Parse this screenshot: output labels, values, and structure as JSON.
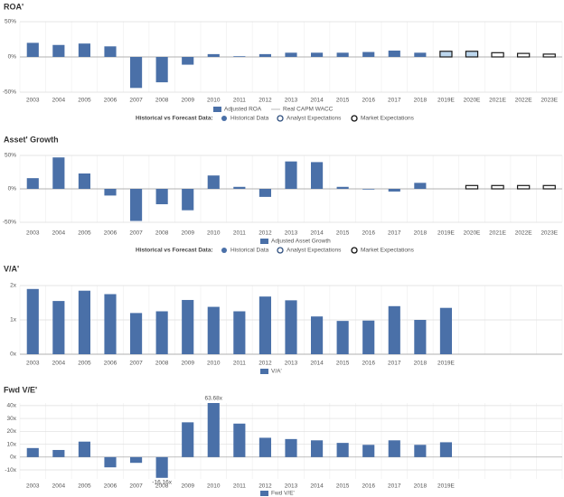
{
  "chart_data": [
    {
      "type": "bar",
      "title": "ROA'",
      "categories": [
        "2003",
        "2004",
        "2005",
        "2006",
        "2007",
        "2008",
        "2009",
        "2010",
        "2011",
        "2012",
        "2013",
        "2014",
        "2015",
        "2016",
        "2017",
        "2018",
        "2019E",
        "2020E",
        "2021E",
        "2022E",
        "2023E"
      ],
      "series_label": "Adjusted ROA",
      "series_label_color": "#4a70a8",
      "line_legend": {
        "label": "Real CAPM WACC",
        "color": "#bbbbbb"
      },
      "forecast_legend_title": "Historical vs Forecast Data:",
      "series": [
        {
          "name": "Historical Data",
          "color": "#4a70a8",
          "stroke": "none",
          "values": [
            20,
            17,
            19,
            15,
            -44,
            -36,
            -11,
            4,
            1,
            4,
            6,
            6,
            6,
            7,
            9,
            6,
            null,
            null,
            null,
            null,
            null
          ]
        },
        {
          "name": "Analyst Expectations",
          "color": "#bdd7ee",
          "stroke": "#1a1a1a",
          "values": [
            null,
            null,
            null,
            null,
            null,
            null,
            null,
            null,
            null,
            null,
            null,
            null,
            null,
            null,
            null,
            null,
            8,
            8,
            null,
            null,
            null
          ]
        },
        {
          "name": "Market Expectations",
          "color": "#ffffff",
          "stroke": "#1a1a1a",
          "values": [
            null,
            null,
            null,
            null,
            null,
            null,
            null,
            null,
            null,
            null,
            null,
            null,
            null,
            null,
            null,
            null,
            null,
            null,
            6,
            5,
            4
          ]
        }
      ],
      "ylim": [
        -50,
        50
      ],
      "yticks": [
        {
          "value": -50,
          "label": "-50%"
        },
        {
          "value": 0,
          "label": "0%"
        },
        {
          "value": 50,
          "label": "50%"
        }
      ],
      "grid": true
    },
    {
      "type": "bar",
      "title": "Asset' Growth",
      "categories": [
        "2003",
        "2004",
        "2005",
        "2006",
        "2007",
        "2008",
        "2009",
        "2010",
        "2011",
        "2012",
        "2013",
        "2014",
        "2015",
        "2016",
        "2017",
        "2018",
        "2019E",
        "2020E",
        "2021E",
        "2022E",
        "2023E"
      ],
      "series_label": "Adjusted Asset Growth",
      "series_label_color": "#4a70a8",
      "forecast_legend_title": "Historical vs Forecast Data:",
      "series": [
        {
          "name": "Historical Data",
          "color": "#4a70a8",
          "stroke": "none",
          "values": [
            16,
            47,
            23,
            -10,
            -48,
            -23,
            -32,
            20,
            3,
            -12,
            41,
            40,
            3,
            -1,
            -4,
            9,
            null,
            null,
            null,
            null,
            null
          ]
        },
        {
          "name": "Analyst Expectations",
          "color": "#bdd7ee",
          "stroke": "#1a1a1a",
          "values": [
            null,
            null,
            null,
            null,
            null,
            null,
            null,
            null,
            null,
            null,
            null,
            null,
            null,
            null,
            null,
            null,
            null,
            null,
            null,
            null,
            null
          ]
        },
        {
          "name": "Market Expectations",
          "color": "#ffffff",
          "stroke": "#1a1a1a",
          "values": [
            null,
            null,
            null,
            null,
            null,
            null,
            null,
            null,
            null,
            null,
            null,
            null,
            null,
            null,
            null,
            null,
            null,
            5,
            5,
            5,
            5
          ]
        }
      ],
      "ylim": [
        -50,
        50
      ],
      "yticks": [
        {
          "value": -50,
          "label": "-50%"
        },
        {
          "value": 0,
          "label": "0%"
        },
        {
          "value": 50,
          "label": "50%"
        }
      ],
      "grid": true
    },
    {
      "type": "bar",
      "title": "V/A'",
      "categories": [
        "2003",
        "2004",
        "2005",
        "2006",
        "2007",
        "2008",
        "2009",
        "2010",
        "2011",
        "2012",
        "2013",
        "2014",
        "2015",
        "2016",
        "2017",
        "2018",
        "2019E"
      ],
      "series_label": "V/A'",
      "series_label_color": "#4a70a8",
      "series": [
        {
          "color": "#4a70a8",
          "stroke": "none",
          "values": [
            1.9,
            1.55,
            1.85,
            1.75,
            1.2,
            1.25,
            1.58,
            1.38,
            1.25,
            1.68,
            1.57,
            1.1,
            0.97,
            0.98,
            1.4,
            1.0,
            1.35
          ]
        }
      ],
      "ylim": [
        0,
        2
      ],
      "yticks": [
        {
          "value": 0,
          "label": "0x"
        },
        {
          "value": 1,
          "label": "1x"
        },
        {
          "value": 2,
          "label": "2x"
        }
      ],
      "grid": true
    },
    {
      "type": "bar",
      "title": "Fwd V/E'",
      "categories": [
        "2003",
        "2004",
        "2005",
        "2006",
        "2007",
        "2008",
        "2009",
        "2010",
        "2011",
        "2012",
        "2013",
        "2014",
        "2015",
        "2016",
        "2017",
        "2018",
        "2019E"
      ],
      "series_label": "Fwd V/E'",
      "series_label_color": "#4a70a8",
      "series": [
        {
          "color": "#4a70a8",
          "stroke": "none",
          "values": [
            7,
            5.5,
            12,
            -8,
            -4.5,
            -16.16,
            27,
            63.68,
            26,
            15,
            14,
            13,
            11,
            9.5,
            13,
            9.5,
            11.5
          ],
          "value_labels": [
            null,
            null,
            null,
            null,
            null,
            "-16.16x",
            null,
            "63.68x",
            null,
            null,
            null,
            null,
            null,
            null,
            null,
            null,
            null
          ]
        }
      ],
      "ylim": [
        -17,
        42
      ],
      "yticks": [
        {
          "value": -10,
          "label": "-10x"
        },
        {
          "value": 0,
          "label": "0x"
        },
        {
          "value": 10,
          "label": "10x"
        },
        {
          "value": 20,
          "label": "20x"
        },
        {
          "value": 30,
          "label": "30x"
        },
        {
          "value": 40,
          "label": "40x"
        }
      ],
      "grid": true
    }
  ]
}
